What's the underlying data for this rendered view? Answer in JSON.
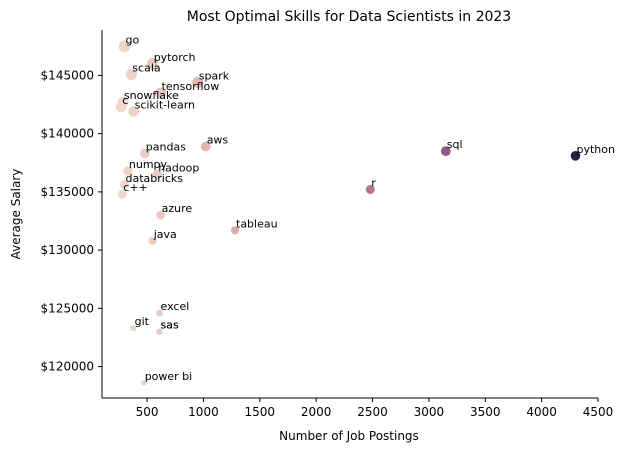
{
  "chart_data": {
    "type": "scatter",
    "title": "Most Optimal Skills for Data Scientists in 2023",
    "xlabel": "Number of Job Postings",
    "ylabel": "Average Salary",
    "xlim": [
      100,
      4500
    ],
    "ylim": [
      117300,
      148900
    ],
    "xticks": [
      500,
      1000,
      1500,
      2000,
      2500,
      3000,
      3500,
      4000,
      4500
    ],
    "xtick_labels": [
      "500",
      "1000",
      "1500",
      "2000",
      "2500",
      "3000",
      "3500",
      "4000",
      "4500"
    ],
    "yticks": [
      120000,
      125000,
      130000,
      135000,
      140000,
      145000
    ],
    "ytick_labels": [
      "$120000",
      "$125000",
      "$130000",
      "$135000",
      "$140000",
      "$145000"
    ],
    "grid": false,
    "color_scale": [
      "#f0d6cc",
      "#e3b4b0",
      "#cf8ea0",
      "#b06a92",
      "#7f4a7f",
      "#2d1e3e"
    ],
    "points": [
      {
        "label": "go",
        "x": 300,
        "y": 147500
      },
      {
        "label": "pytorch",
        "x": 550,
        "y": 146000
      },
      {
        "label": "scala",
        "x": 360,
        "y": 145100
      },
      {
        "label": "spark",
        "x": 950,
        "y": 144400
      },
      {
        "label": "tensorflow",
        "x": 620,
        "y": 143500
      },
      {
        "label": "snowflake",
        "x": 285,
        "y": 142700
      },
      {
        "label": "c",
        "x": 270,
        "y": 142300
      },
      {
        "label": "scikit-learn",
        "x": 380,
        "y": 141900
      },
      {
        "label": "aws",
        "x": 1020,
        "y": 138900
      },
      {
        "label": "sql",
        "x": 3150,
        "y": 138500
      },
      {
        "label": "python",
        "x": 4300,
        "y": 138100
      },
      {
        "label": "pandas",
        "x": 480,
        "y": 138300
      },
      {
        "label": "numpy",
        "x": 330,
        "y": 136800
      },
      {
        "label": "hadoop",
        "x": 590,
        "y": 136500
      },
      {
        "label": "databricks",
        "x": 300,
        "y": 135600
      },
      {
        "label": "r",
        "x": 2480,
        "y": 135200
      },
      {
        "label": "c++",
        "x": 280,
        "y": 134800
      },
      {
        "label": "azure",
        "x": 620,
        "y": 133000
      },
      {
        "label": "tableau",
        "x": 1280,
        "y": 131700
      },
      {
        "label": "java",
        "x": 550,
        "y": 130800
      },
      {
        "label": "excel",
        "x": 610,
        "y": 124600
      },
      {
        "label": "git",
        "x": 380,
        "y": 123300
      },
      {
        "label": "sas",
        "x": 610,
        "y": 123000
      },
      {
        "label": "sas",
        "x": 610,
        "y": 123000
      },
      {
        "label": "power bi",
        "x": 470,
        "y": 118600
      }
    ]
  }
}
